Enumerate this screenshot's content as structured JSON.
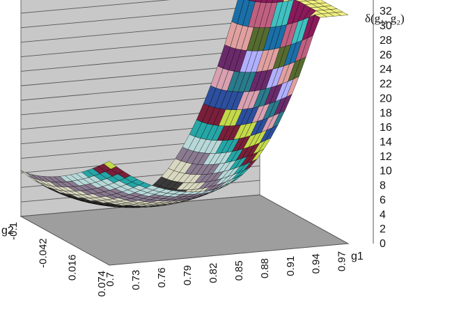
{
  "chart_data": {
    "type": "surface",
    "title": "δ(g₁, g₂)",
    "xlabel": "g1",
    "ylabel": "g2",
    "zlim": [
      0,
      32
    ],
    "z_ticks": [
      0,
      2,
      4,
      6,
      8,
      10,
      12,
      14,
      16,
      18,
      20,
      22,
      24,
      26,
      28,
      30,
      32
    ],
    "x_ticks": [
      "0.7",
      "0.73",
      "0.76",
      "0.79",
      "0.82",
      "0.85",
      "0.88",
      "0.91",
      "0.94",
      "0.97"
    ],
    "y_ticks": [
      "-0.1",
      "-0.042",
      "0.016",
      "0.074"
    ],
    "grid": true,
    "floor_color": "#9e9e9e",
    "wall_color": "#c8c8c8",
    "minimum": {
      "g1": 0.82,
      "g2": 0.074,
      "value": 1
    }
  }
}
